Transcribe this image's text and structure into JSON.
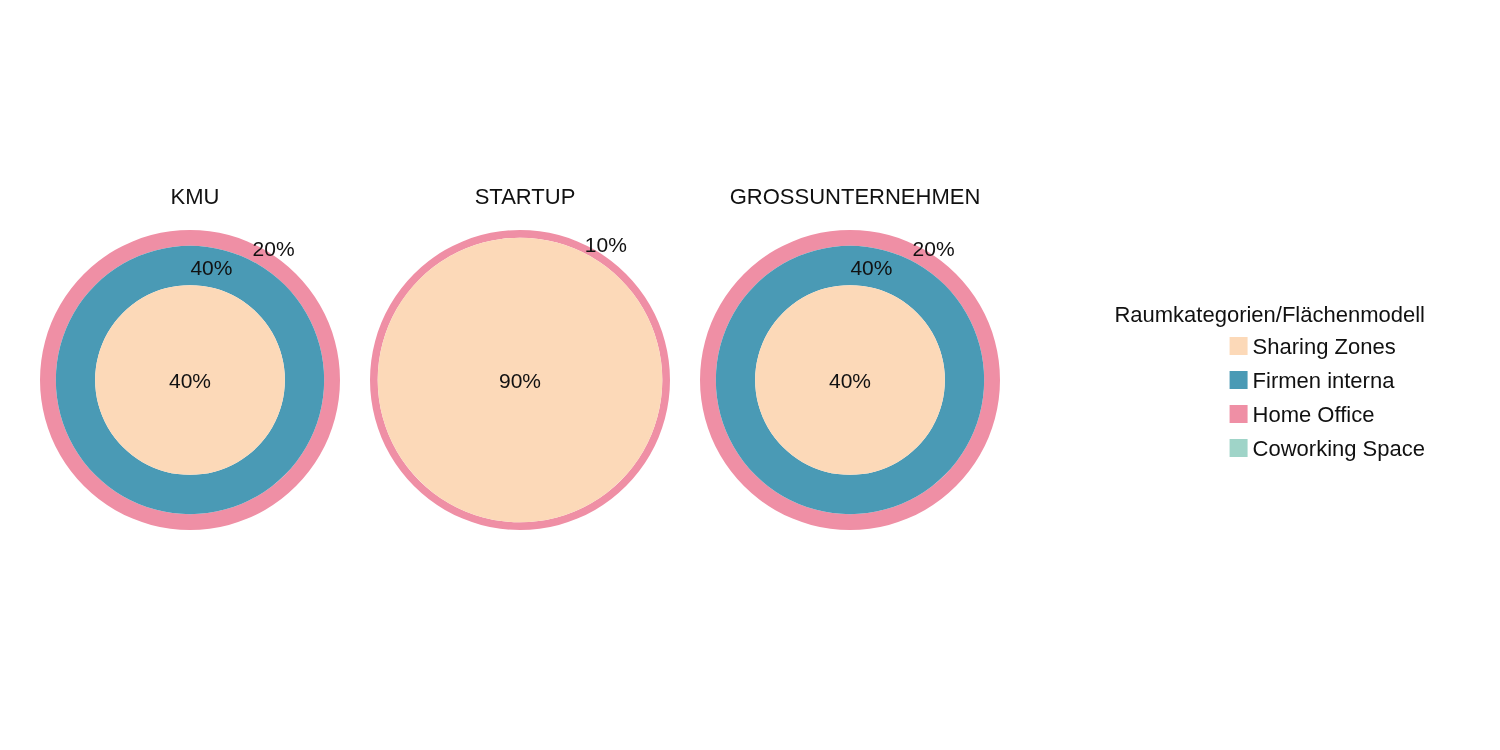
{
  "chart_data": {
    "type": "other",
    "legend": "right",
    "legend_title": "Raumkategorien/Flächenmodell",
    "categories": [
      "KMU",
      "STARTUP",
      "GROSSUNTERNEHMEN"
    ],
    "series": [
      {
        "name": "Sharing Zones",
        "color": "#fcd9b8",
        "values": [
          40,
          90,
          40
        ],
        "value_labels": [
          "40%",
          "90%",
          "40%"
        ]
      },
      {
        "name": "Firmen interna",
        "color": "#4a9ab5",
        "values": [
          40,
          null,
          40
        ],
        "value_labels": [
          "40%",
          null,
          "40%"
        ]
      },
      {
        "name": "Home Office",
        "color": "#ef8fa5",
        "values": [
          20,
          10,
          20
        ],
        "value_labels": [
          "20%",
          "10%",
          "20%"
        ]
      },
      {
        "name": "Coworking Space",
        "color": "#9fd4c8",
        "values": [
          null,
          null,
          null
        ]
      }
    ]
  }
}
